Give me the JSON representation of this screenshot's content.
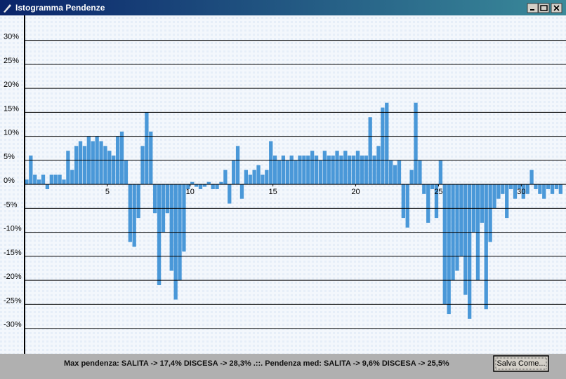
{
  "window": {
    "title": "Istogramma Pendenze"
  },
  "chart_data": {
    "type": "bar",
    "x": [
      0.25,
      0.5,
      0.75,
      1,
      1.25,
      1.5,
      1.75,
      2,
      2.25,
      2.5,
      2.75,
      3,
      3.25,
      3.5,
      3.75,
      4,
      4.25,
      4.5,
      4.75,
      5,
      5.25,
      5.5,
      5.75,
      6,
      6.25,
      6.5,
      6.75,
      7,
      7.25,
      7.5,
      7.75,
      8,
      8.25,
      8.5,
      8.75,
      9,
      9.25,
      9.5,
      9.75,
      10,
      10.25,
      10.5,
      10.75,
      11,
      11.25,
      11.5,
      11.75,
      12,
      12.25,
      12.5,
      12.75,
      13,
      13.25,
      13.5,
      13.75,
      14,
      14.25,
      14.5,
      14.75,
      15,
      15.25,
      15.5,
      15.75,
      16,
      16.25,
      16.5,
      16.75,
      17,
      17.25,
      17.5,
      17.75,
      18,
      18.25,
      18.5,
      18.75,
      19,
      19.25,
      19.5,
      19.75,
      20,
      20.25,
      20.5,
      20.75,
      21,
      21.25,
      21.5,
      21.75,
      22,
      22.25,
      22.5,
      22.75,
      23,
      23.25,
      23.5,
      23.75,
      24,
      24.25,
      24.5,
      24.75,
      25,
      25.25,
      25.5,
      25.75,
      26,
      26.25,
      26.5,
      26.75,
      27,
      27.25,
      27.5,
      27.75,
      28,
      28.25,
      28.5,
      28.75,
      29,
      29.25,
      29.5,
      29.75,
      30,
      30.25,
      30.5,
      30.75,
      31,
      31.25,
      31.5,
      31.75,
      32,
      32.25,
      32.5
    ],
    "values": [
      1,
      6,
      2,
      1,
      2,
      -1,
      2,
      2,
      2,
      1,
      7,
      3,
      8,
      9,
      8,
      10,
      9,
      10,
      9,
      8,
      7,
      6,
      10,
      11,
      5,
      -12,
      -13,
      -7,
      8,
      15,
      11,
      -6,
      -21,
      -10,
      -6,
      -18,
      -24,
      -20,
      -14,
      -1,
      0.5,
      -0.5,
      -1,
      -0.5,
      0.5,
      -1,
      -1,
      0.5,
      3,
      -4,
      5,
      8,
      -3,
      3,
      2,
      3,
      4,
      2,
      3,
      9,
      6,
      5,
      6,
      5,
      6,
      5,
      6,
      6,
      6,
      7,
      6,
      5,
      7,
      6,
      6,
      7,
      6,
      7,
      6,
      6,
      7,
      6,
      6,
      14,
      6,
      8,
      16,
      17,
      5,
      4,
      5,
      -7,
      -9,
      3,
      17,
      5,
      -2,
      -8,
      -1,
      -7,
      5,
      -25,
      -27,
      -20,
      -18,
      -15,
      -23,
      -28,
      -10,
      -20,
      -8,
      -26,
      -12,
      -5,
      -3,
      -2,
      -7,
      -1,
      -3,
      -1,
      -3,
      -2,
      3,
      -1,
      -2,
      -3,
      -1,
      -2,
      -1,
      -2
    ],
    "color": "#4a98d8",
    "xlim": [
      0,
      32.7
    ],
    "xticks": [
      5,
      10,
      15,
      20,
      25,
      30
    ],
    "ylim": [
      -35.3,
      35.2
    ],
    "yticks": [
      {
        "value": 30,
        "label": "30%"
      },
      {
        "value": 25,
        "label": "25%"
      },
      {
        "value": 20,
        "label": "20%"
      },
      {
        "value": 15,
        "label": "15%"
      },
      {
        "value": 10,
        "label": "10%"
      },
      {
        "value": 5,
        "label": "5%"
      },
      {
        "value": 0,
        "label": "0%"
      },
      {
        "value": -5,
        "label": "-5%"
      },
      {
        "value": -10,
        "label": "-10%"
      },
      {
        "value": -15,
        "label": "-15%"
      },
      {
        "value": -20,
        "label": "-20%"
      },
      {
        "value": -25,
        "label": "-25%"
      },
      {
        "value": -30,
        "label": "-30%"
      }
    ],
    "grid": true
  },
  "status": {
    "text": "Max pendenza: SALITA -> 17,4% DISCESA -> 28,3% .::. Pendenza med: SALITA -> 9,6% DISCESA -> 25,5%",
    "button": "Salva Come..."
  }
}
